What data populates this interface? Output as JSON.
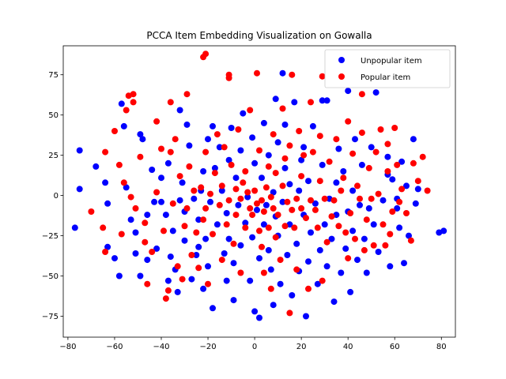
{
  "chart_data": {
    "type": "scatter",
    "title": "PCCA Item Embedding Visualization on Gowalla",
    "xlabel": "",
    "ylabel": "",
    "xlim": [
      -82,
      86
    ],
    "ylim": [
      -88,
      93
    ],
    "xticks": [
      -80,
      -60,
      -40,
      -20,
      0,
      20,
      40,
      60,
      80
    ],
    "yticks": [
      -75,
      -50,
      -25,
      0,
      25,
      50,
      75
    ],
    "grid": false,
    "legend_position": "top-right",
    "series": [
      {
        "name": "Unpopular item",
        "color": "#0000ff",
        "points": [
          [
            -75,
            28
          ],
          [
            -75,
            4
          ],
          [
            -77,
            -20
          ],
          [
            -68,
            18
          ],
          [
            -64,
            8
          ],
          [
            -63,
            -5
          ],
          [
            -63,
            -32
          ],
          [
            -60,
            -39
          ],
          [
            -58,
            -50
          ],
          [
            -57,
            57
          ],
          [
            -56,
            43
          ],
          [
            -55,
            5
          ],
          [
            -53,
            -15
          ],
          [
            -51,
            -23
          ],
          [
            -51,
            -36
          ],
          [
            -49,
            -50
          ],
          [
            -49,
            38
          ],
          [
            -48,
            35
          ],
          [
            -46,
            -40
          ],
          [
            -46,
            -12
          ],
          [
            -44,
            16
          ],
          [
            -43,
            -4
          ],
          [
            -42,
            -33
          ],
          [
            -40,
            -4
          ],
          [
            -40,
            11
          ],
          [
            -38,
            -12
          ],
          [
            -37,
            20
          ],
          [
            -37,
            -53
          ],
          [
            -36,
            -38
          ],
          [
            -35,
            -22
          ],
          [
            -34,
            -46
          ],
          [
            -33,
            -60
          ],
          [
            -32,
            53
          ],
          [
            -32,
            -3
          ],
          [
            -31,
            8
          ],
          [
            -30,
            -10
          ],
          [
            -30,
            -28
          ],
          [
            -29,
            44
          ],
          [
            -28,
            31
          ],
          [
            -27,
            -52
          ],
          [
            -26,
            -2
          ],
          [
            -25,
            -37
          ],
          [
            -24,
            -15
          ],
          [
            -24,
            -32
          ],
          [
            -23,
            3
          ],
          [
            -22,
            -58
          ],
          [
            -22,
            15
          ],
          [
            -21,
            -27
          ],
          [
            -20,
            35
          ],
          [
            -20,
            -44
          ],
          [
            -19,
            -4
          ],
          [
            -18,
            43
          ],
          [
            -18,
            -70
          ],
          [
            -17,
            17
          ],
          [
            -16,
            -18
          ],
          [
            -15,
            30
          ],
          [
            -14,
            3
          ],
          [
            -13,
            -36
          ],
          [
            -12,
            -53
          ],
          [
            -12,
            -11
          ],
          [
            -11,
            22
          ],
          [
            -11,
            -27
          ],
          [
            -10,
            42
          ],
          [
            -9,
            -42
          ],
          [
            -9,
            -65
          ],
          [
            -8,
            11
          ],
          [
            -7,
            -6
          ],
          [
            -6,
            28
          ],
          [
            -6,
            -31
          ],
          [
            -5,
            51
          ],
          [
            -4,
            -17
          ],
          [
            -3,
            -1
          ],
          [
            -2,
            -53
          ],
          [
            -1,
            36
          ],
          [
            -1,
            -26
          ],
          [
            0,
            -72
          ],
          [
            0,
            20
          ],
          [
            1,
            -9
          ],
          [
            2,
            -39
          ],
          [
            2,
            -76
          ],
          [
            3,
            11
          ],
          [
            4,
            45
          ],
          [
            4,
            -18
          ],
          [
            5,
            -6
          ],
          [
            6,
            25
          ],
          [
            6,
            -34
          ],
          [
            7,
            -46
          ],
          [
            8,
            2
          ],
          [
            8,
            -68
          ],
          [
            9,
            60
          ],
          [
            9,
            -13
          ],
          [
            10,
            33
          ],
          [
            10,
            -25
          ],
          [
            11,
            -55
          ],
          [
            12,
            76
          ],
          [
            12,
            -4
          ],
          [
            13,
            44
          ],
          [
            13,
            17
          ],
          [
            14,
            -37
          ],
          [
            15,
            7
          ],
          [
            15,
            -18
          ],
          [
            16,
            -62
          ],
          [
            17,
            58
          ],
          [
            18,
            -30
          ],
          [
            19,
            -47
          ],
          [
            19,
            3
          ],
          [
            20,
            22
          ],
          [
            21,
            -12
          ],
          [
            21,
            30
          ],
          [
            22,
            -75
          ],
          [
            23,
            -41
          ],
          [
            23,
            9
          ],
          [
            24,
            -23
          ],
          [
            25,
            43
          ],
          [
            26,
            -5
          ],
          [
            27,
            -55
          ],
          [
            28,
            -34
          ],
          [
            29,
            59
          ],
          [
            29,
            19
          ],
          [
            30,
            -18
          ],
          [
            31,
            -44
          ],
          [
            31,
            59
          ],
          [
            32,
            -2
          ],
          [
            33,
            -27
          ],
          [
            34,
            -66
          ],
          [
            35,
            8
          ],
          [
            35,
            -12
          ],
          [
            36,
            29
          ],
          [
            37,
            -48
          ],
          [
            38,
            15
          ],
          [
            39,
            -33
          ],
          [
            40,
            -10
          ],
          [
            40,
            65
          ],
          [
            41,
            -60
          ],
          [
            42,
            -22
          ],
          [
            42,
            3
          ],
          [
            43,
            35
          ],
          [
            44,
            -40
          ],
          [
            45,
            -6
          ],
          [
            46,
            19
          ],
          [
            47,
            -27
          ],
          [
            48,
            -48
          ],
          [
            49,
            -8
          ],
          [
            50,
            30
          ],
          [
            51,
            -18
          ],
          [
            52,
            64
          ],
          [
            53,
            -35
          ],
          [
            55,
            -3
          ],
          [
            57,
            13
          ],
          [
            57,
            24
          ],
          [
            58,
            -44
          ],
          [
            59,
            10
          ],
          [
            61,
            -2
          ],
          [
            61,
            -8
          ],
          [
            62,
            -20
          ],
          [
            63,
            21
          ],
          [
            64,
            -42
          ],
          [
            65,
            6
          ],
          [
            66,
            -25
          ],
          [
            68,
            35
          ],
          [
            69,
            -5
          ],
          [
            70,
            4
          ],
          [
            79,
            -23
          ],
          [
            81,
            -22
          ]
        ]
      },
      {
        "name": "Popular item",
        "color": "#ff0000",
        "points": [
          [
            -70,
            -10
          ],
          [
            -65,
            -20
          ],
          [
            -64,
            -35
          ],
          [
            -64,
            27
          ],
          [
            -60,
            40
          ],
          [
            -58,
            19
          ],
          [
            -57,
            -24
          ],
          [
            -56,
            8
          ],
          [
            -55,
            53
          ],
          [
            -54,
            62
          ],
          [
            -53,
            -1
          ],
          [
            -52,
            63
          ],
          [
            -52,
            58
          ],
          [
            -51,
            -8
          ],
          [
            -49,
            24
          ],
          [
            -47,
            -29
          ],
          [
            -47,
            -17
          ],
          [
            -46,
            -55
          ],
          [
            -44,
            -35
          ],
          [
            -42,
            2
          ],
          [
            -42,
            46
          ],
          [
            -40,
            29
          ],
          [
            -39,
            -22
          ],
          [
            -38,
            -64
          ],
          [
            -37,
            -59
          ],
          [
            -36,
            58
          ],
          [
            -36,
            27
          ],
          [
            -35,
            -5
          ],
          [
            -34,
            35
          ],
          [
            -33,
            -44
          ],
          [
            -32,
            12
          ],
          [
            -31,
            -52
          ],
          [
            -30,
            -19
          ],
          [
            -29,
            63
          ],
          [
            -29,
            -8
          ],
          [
            -28,
            18
          ],
          [
            -27,
            -37
          ],
          [
            -26,
            3
          ],
          [
            -25,
            -23
          ],
          [
            -24,
            -45
          ],
          [
            -23,
            5
          ],
          [
            -22,
            86
          ],
          [
            -22,
            -15
          ],
          [
            -21,
            -8
          ],
          [
            -21,
            27
          ],
          [
            -21,
            88
          ],
          [
            -20,
            -55
          ],
          [
            -19,
            1
          ],
          [
            -18,
            -24
          ],
          [
            -17,
            14
          ],
          [
            -16,
            38
          ],
          [
            -15,
            -6
          ],
          [
            -14,
            6
          ],
          [
            -14,
            -40
          ],
          [
            -13,
            30
          ],
          [
            -12,
            -18
          ],
          [
            -11,
            75
          ],
          [
            -11,
            -3
          ],
          [
            -11,
            73
          ],
          [
            -10,
            19
          ],
          [
            -9,
            -30
          ],
          [
            -8,
            4
          ],
          [
            -8,
            -12
          ],
          [
            -7,
            41
          ],
          [
            -6,
            -2
          ],
          [
            -6,
            -48
          ],
          [
            -5,
            8
          ],
          [
            -4,
            -20
          ],
          [
            -4,
            15
          ],
          [
            -3,
            2
          ],
          [
            -2,
            -8
          ],
          [
            -2,
            53
          ],
          [
            -1,
            -12
          ],
          [
            0,
            3
          ],
          [
            1,
            -5
          ],
          [
            1,
            76
          ],
          [
            2,
            -22
          ],
          [
            2,
            28
          ],
          [
            3,
            -32
          ],
          [
            3,
            -3
          ],
          [
            4,
            -10
          ],
          [
            4,
            -48
          ],
          [
            5,
            5
          ],
          [
            6,
            18
          ],
          [
            6,
            -20
          ],
          [
            7,
            -1
          ],
          [
            7,
            -58
          ],
          [
            8,
            38
          ],
          [
            8,
            -8
          ],
          [
            9,
            14
          ],
          [
            9,
            -26
          ],
          [
            10,
            -12
          ],
          [
            11,
            -40
          ],
          [
            12,
            6
          ],
          [
            12,
            54
          ],
          [
            13,
            23
          ],
          [
            13,
            -19
          ],
          [
            14,
            -4
          ],
          [
            15,
            31
          ],
          [
            15,
            -73
          ],
          [
            16,
            75
          ],
          [
            16,
            -9
          ],
          [
            17,
            -20
          ],
          [
            18,
            -2
          ],
          [
            18,
            -46
          ],
          [
            19,
            40
          ],
          [
            20,
            -8
          ],
          [
            20,
            12
          ],
          [
            21,
            25
          ],
          [
            22,
            -14
          ],
          [
            23,
            -58
          ],
          [
            24,
            58
          ],
          [
            24,
            -3
          ],
          [
            25,
            27
          ],
          [
            26,
            -9
          ],
          [
            27,
            -20
          ],
          [
            28,
            9
          ],
          [
            28,
            37
          ],
          [
            29,
            74
          ],
          [
            29,
            -53
          ],
          [
            30,
            -2
          ],
          [
            31,
            -29
          ],
          [
            32,
            21
          ],
          [
            33,
            -13
          ],
          [
            34,
            -3
          ],
          [
            35,
            35
          ],
          [
            36,
            -19
          ],
          [
            37,
            3
          ],
          [
            38,
            11
          ],
          [
            39,
            -23
          ],
          [
            40,
            -39
          ],
          [
            40,
            46
          ],
          [
            41,
            -11
          ],
          [
            42,
            26
          ],
          [
            43,
            -27
          ],
          [
            44,
            6
          ],
          [
            45,
            -2
          ],
          [
            46,
            63
          ],
          [
            46,
            39
          ],
          [
            47,
            -34
          ],
          [
            48,
            -15
          ],
          [
            49,
            17
          ],
          [
            50,
            -2
          ],
          [
            51,
            -31
          ],
          [
            52,
            27
          ],
          [
            53,
            1
          ],
          [
            54,
            41
          ],
          [
            55,
            -18
          ],
          [
            56,
            -31
          ],
          [
            57,
            32
          ],
          [
            57,
            15
          ],
          [
            58,
            -24
          ],
          [
            59,
            -10
          ],
          [
            60,
            42
          ],
          [
            61,
            19
          ],
          [
            62,
            -4
          ],
          [
            63,
            4
          ],
          [
            65,
            -11
          ],
          [
            67,
            -28
          ],
          [
            68,
            20
          ],
          [
            70,
            9
          ],
          [
            72,
            24
          ],
          [
            74,
            3
          ]
        ]
      }
    ]
  }
}
